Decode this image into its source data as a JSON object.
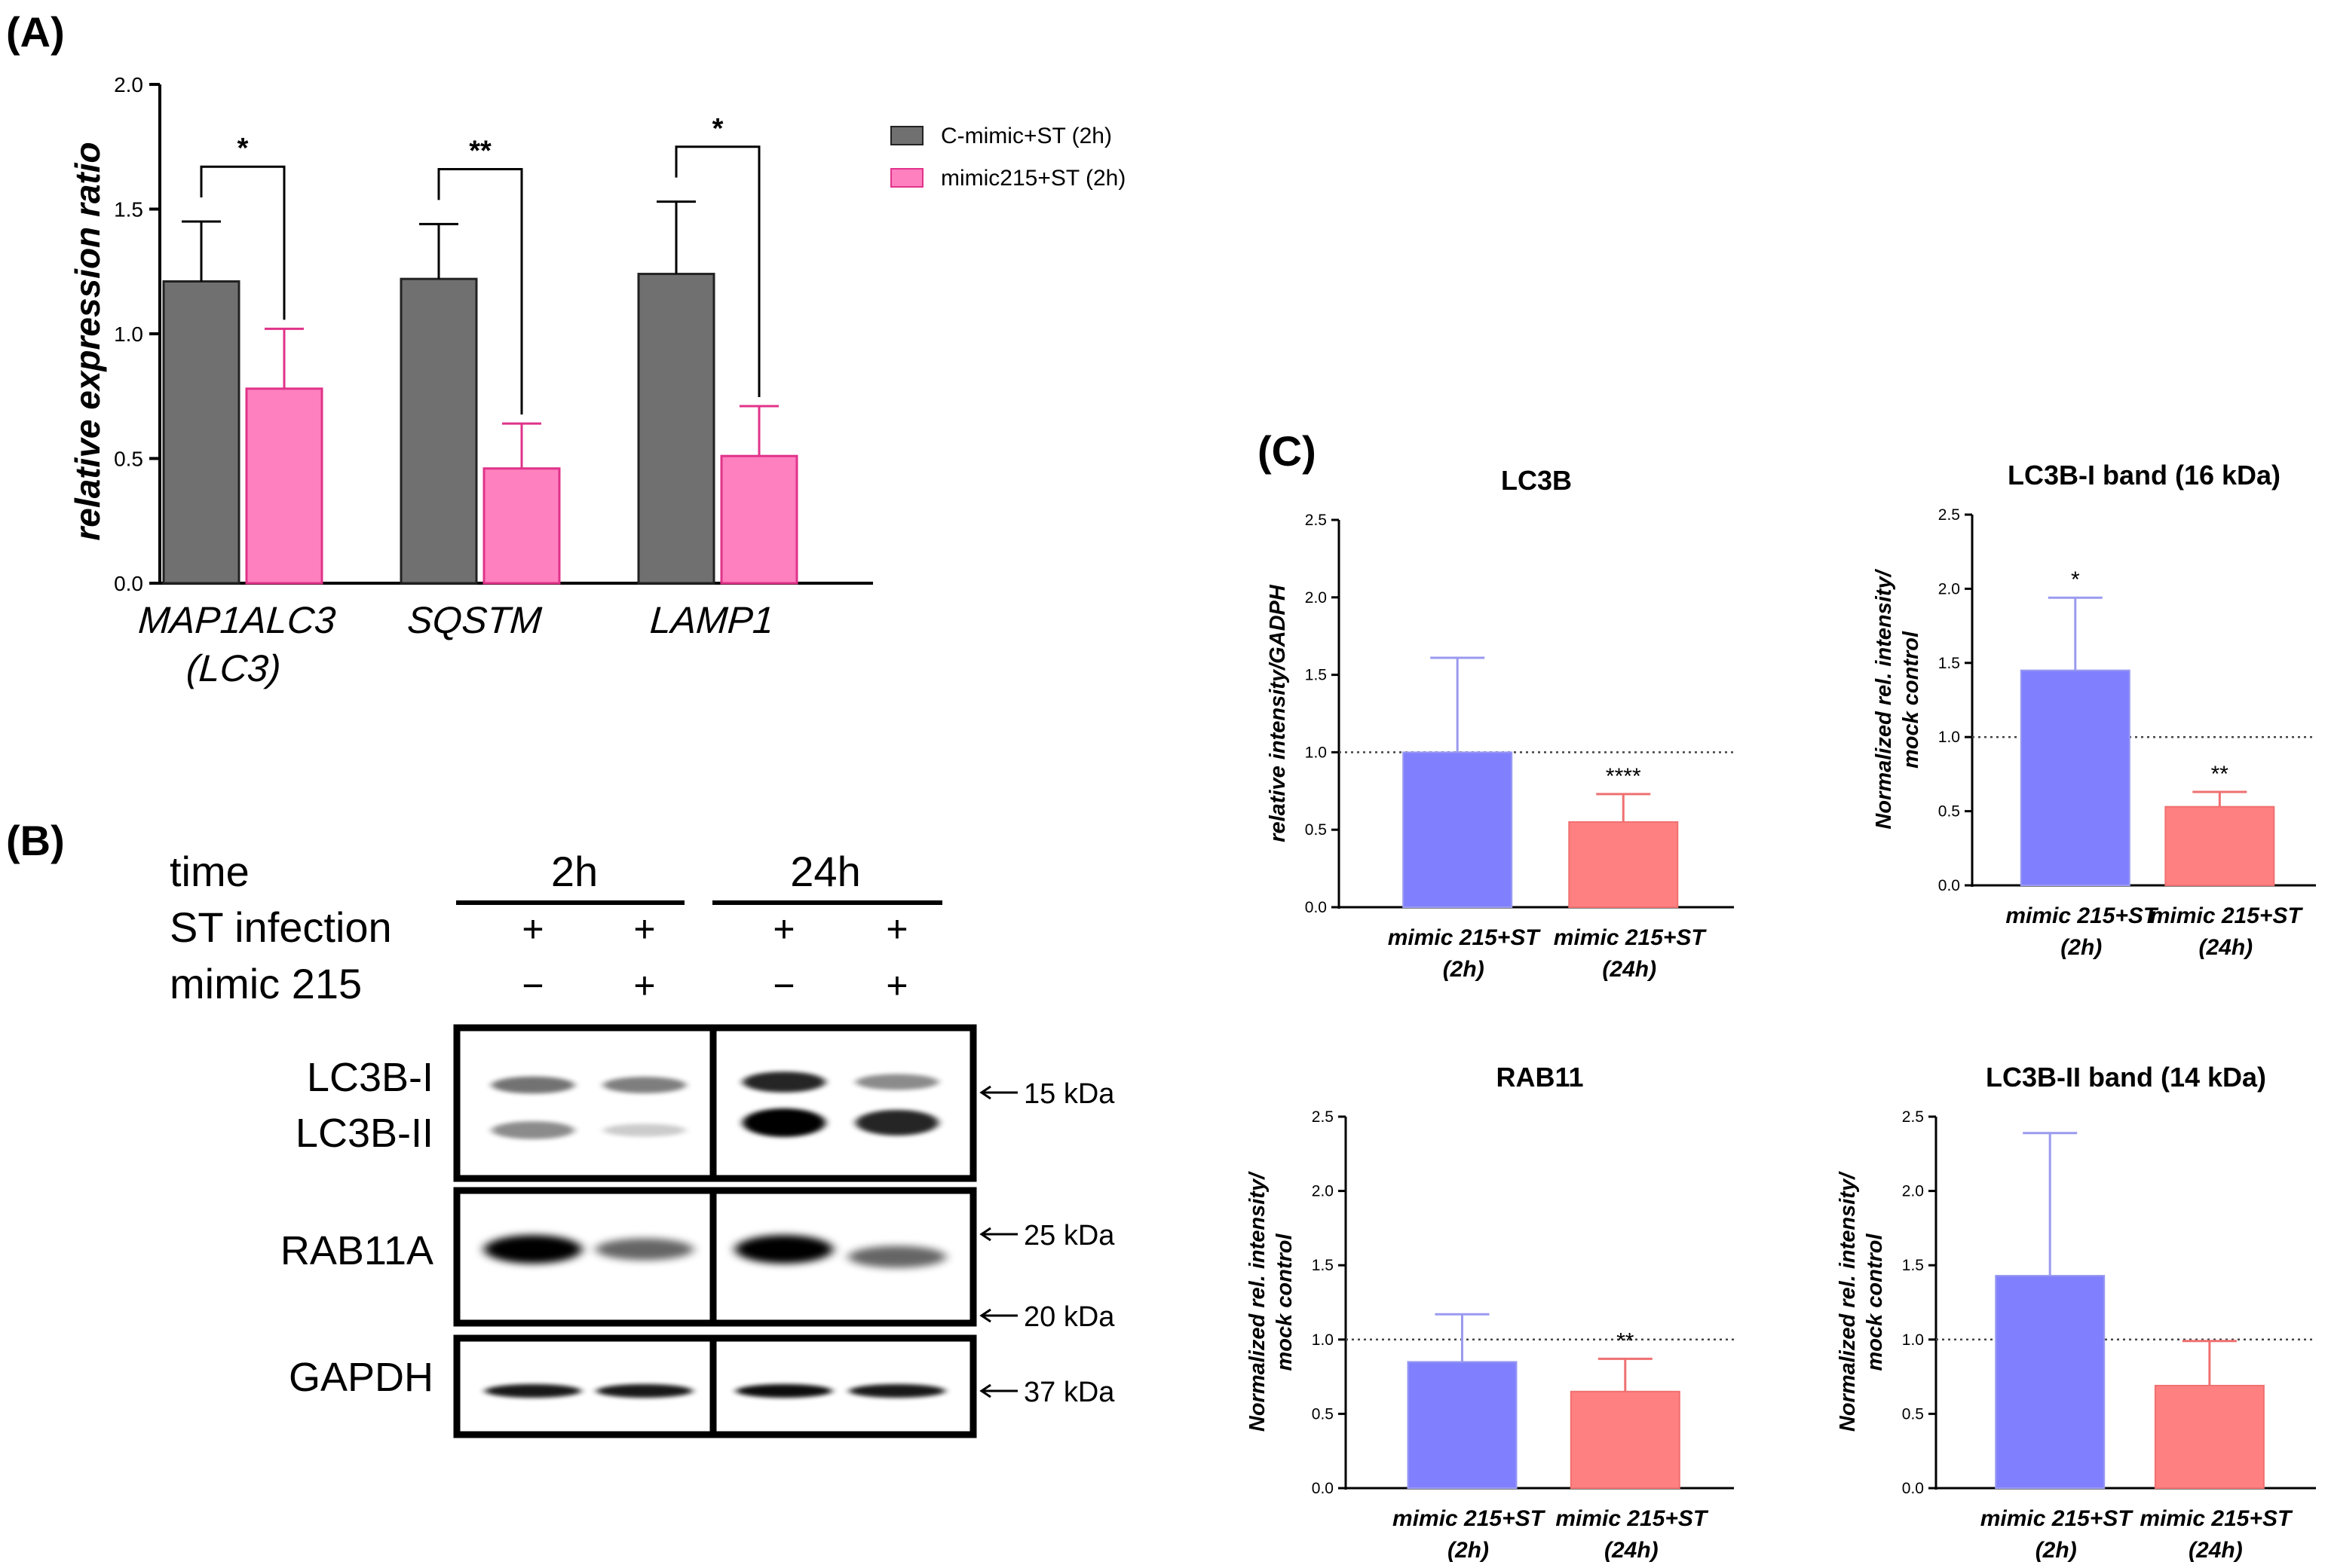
{
  "panel_labels": {
    "a": "(A)",
    "b": "(B)",
    "c": "(C)"
  },
  "colors": {
    "gray_bar": "#707070",
    "pink_bar": "#FF80BF",
    "pink_err": "#E0338A",
    "blue_bar": "#8080FF",
    "blue_err": "#9A9AF0",
    "salmon_bar": "#FF8080",
    "salmon_err": "#F07070"
  },
  "chart_data": [
    {
      "id": "A",
      "type": "bar",
      "title": "",
      "ylabel": "relative expression ratio",
      "xlabel": "",
      "ylim": [
        0,
        2.0
      ],
      "yticks": [
        "0.0",
        "0.5",
        "1.0",
        "1.5",
        "2.0"
      ],
      "categories": [
        "MAP1ALC3|(LC3)",
        "SQSTM",
        "LAMP1"
      ],
      "series": [
        {
          "name": "C-mimic+ST (2h)",
          "values": [
            1.21,
            1.22,
            1.24
          ],
          "errors": [
            0.24,
            0.22,
            0.29
          ]
        },
        {
          "name": "mimic215+ST (2h)",
          "values": [
            0.78,
            0.46,
            0.51
          ],
          "errors": [
            0.24,
            0.18,
            0.2
          ]
        }
      ],
      "significance": [
        "*",
        "**",
        "*"
      ],
      "legend_position": "right"
    },
    {
      "id": "C1",
      "type": "bar",
      "title": "LC3B",
      "ylabel": "relative intensity/GADPH",
      "ylim": [
        0,
        2.5
      ],
      "yticks": [
        "0.0",
        "0.5",
        "1.0",
        "1.5",
        "2.0",
        "2.5"
      ],
      "categories": [
        "mimic 215+ST|(2h)",
        "mimic 215+ST|(24h)"
      ],
      "values": [
        1.0,
        0.55
      ],
      "errors": [
        0.61,
        0.18
      ],
      "significance": [
        "",
        "****"
      ],
      "reference_line": 1.0
    },
    {
      "id": "C2",
      "type": "bar",
      "title": "LC3B-I band (16 kDa)",
      "ylabel": "Normalized rel. intensity/|mock control",
      "ylim": [
        0,
        2.5
      ],
      "yticks": [
        "0.0",
        "0.5",
        "1.0",
        "1.5",
        "2.0",
        "2.5"
      ],
      "categories": [
        "mimic 215+ST|(2h)",
        "mimic 215+ST|(24h)"
      ],
      "values": [
        1.45,
        0.53
      ],
      "errors": [
        0.49,
        0.1
      ],
      "significance": [
        "*",
        "**"
      ],
      "reference_line": 1.0
    },
    {
      "id": "C3",
      "type": "bar",
      "title": "RAB11",
      "ylabel": "Normalized rel. intensity/|mock control",
      "ylim": [
        0,
        2.5
      ],
      "yticks": [
        "0.0",
        "0.5",
        "1.0",
        "1.5",
        "2.0",
        "2.5"
      ],
      "categories": [
        "mimic 215+ST|(2h)",
        "mimic 215+ST|(24h)"
      ],
      "values": [
        0.85,
        0.65
      ],
      "errors": [
        0.32,
        0.22
      ],
      "significance": [
        "",
        "**"
      ],
      "reference_line": 1.0
    },
    {
      "id": "C4",
      "type": "bar",
      "title": "LC3B-II band (14 kDa)",
      "ylabel": "Normalized rel. intensity/|mock control",
      "ylim": [
        0,
        2.5
      ],
      "yticks": [
        "0.0",
        "0.5",
        "1.0",
        "1.5",
        "2.0",
        "2.5"
      ],
      "categories": [
        "mimic 215+ST|(2h)",
        "mimic 215+ST|(24h)"
      ],
      "values": [
        1.43,
        0.69
      ],
      "errors": [
        0.96,
        0.3
      ],
      "significance": [
        "",
        ""
      ],
      "reference_line": 1.0
    }
  ],
  "western_blot": {
    "row_labels": {
      "time": "time",
      "st_infection": "ST infection",
      "mimic": "mimic 215"
    },
    "time_groups": [
      "2h",
      "24h"
    ],
    "st_infection_marks": [
      "+",
      "+",
      "+",
      "+"
    ],
    "mimic_marks": [
      "−",
      "+",
      "−",
      "+"
    ],
    "bands": {
      "lc3": {
        "label_1": "LC3B-I",
        "label_2": "LC3B-II",
        "marker": "15 kDa",
        "upper_intensity": [
          0.55,
          0.5,
          0.85,
          0.45
        ],
        "lower_intensity": [
          0.45,
          0.2,
          1.0,
          0.85
        ]
      },
      "rab11": {
        "label": "RAB11A",
        "marker_1": "25 kDa",
        "marker_2": "20 kDa",
        "intensity": [
          1.0,
          0.6,
          1.0,
          0.6
        ]
      },
      "gapdh": {
        "label": "GAPDH",
        "marker": "37 kDa",
        "intensity": [
          0.9,
          0.9,
          0.95,
          0.9
        ]
      }
    }
  }
}
